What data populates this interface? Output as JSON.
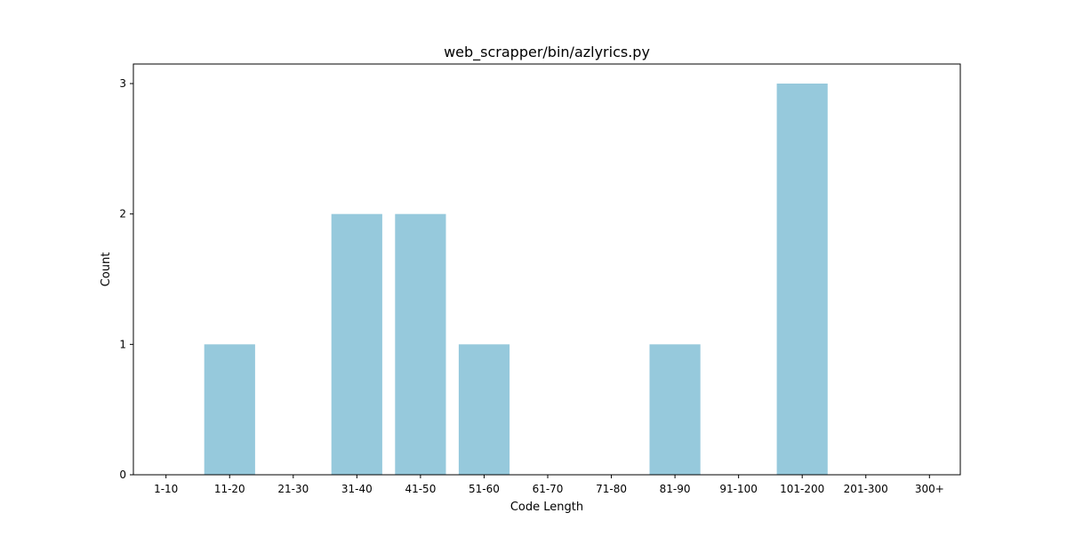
{
  "chart_data": {
    "type": "bar",
    "title": "web_scrapper/bin/azlyrics.py",
    "xlabel": "Code Length",
    "ylabel": "Count",
    "categories": [
      "1-10",
      "11-20",
      "21-30",
      "31-40",
      "41-50",
      "51-60",
      "61-70",
      "71-80",
      "81-90",
      "91-100",
      "101-200",
      "201-300",
      "300+"
    ],
    "values": [
      0,
      1,
      0,
      2,
      2,
      1,
      0,
      0,
      1,
      0,
      3,
      0,
      0
    ],
    "ylim": [
      0,
      3.15
    ],
    "yticks": [
      "0",
      "1",
      "2",
      "3"
    ],
    "grid": false,
    "bar_color": "#96c9dc"
  }
}
